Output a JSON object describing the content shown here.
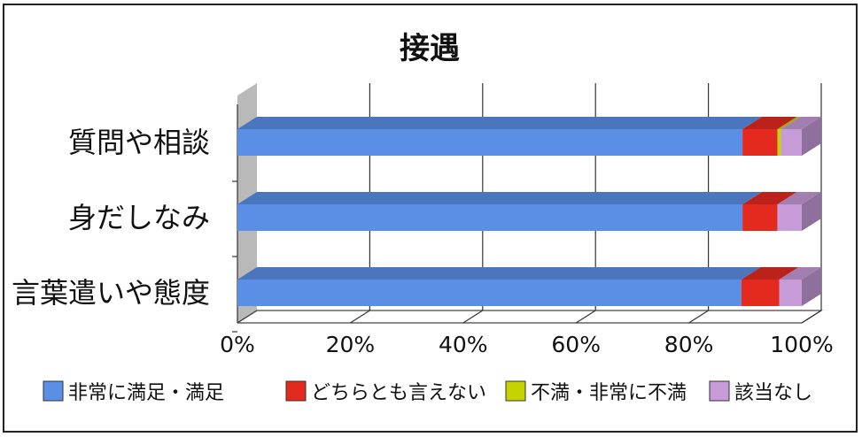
{
  "chart_data": {
    "type": "bar",
    "orientation": "horizontal",
    "stacked": true,
    "percent": true,
    "style": "3d",
    "title": "接遇",
    "categories": [
      "質問や相談",
      "身だしなみ",
      "言葉遣いや態度"
    ],
    "series": [
      {
        "name": "非常に満足・満足",
        "color": "#5b8fe6",
        "values": [
          89.5,
          89.5,
          89.3
        ]
      },
      {
        "name": "どちらとも言えない",
        "color": "#e42a1e",
        "values": [
          6.2,
          6.2,
          6.7
        ]
      },
      {
        "name": "不満・非常に不満",
        "color": "#c5d400",
        "values": [
          0.6,
          0.0,
          0.0
        ]
      },
      {
        "name": "該当なし",
        "color": "#c79ad8",
        "values": [
          3.7,
          4.3,
          4.0
        ]
      }
    ],
    "xlim": [
      0,
      100
    ],
    "x_ticks": [
      "0%",
      "20%",
      "40%",
      "60%",
      "80%",
      "100%"
    ],
    "grid": true,
    "legend_position": "bottom"
  }
}
